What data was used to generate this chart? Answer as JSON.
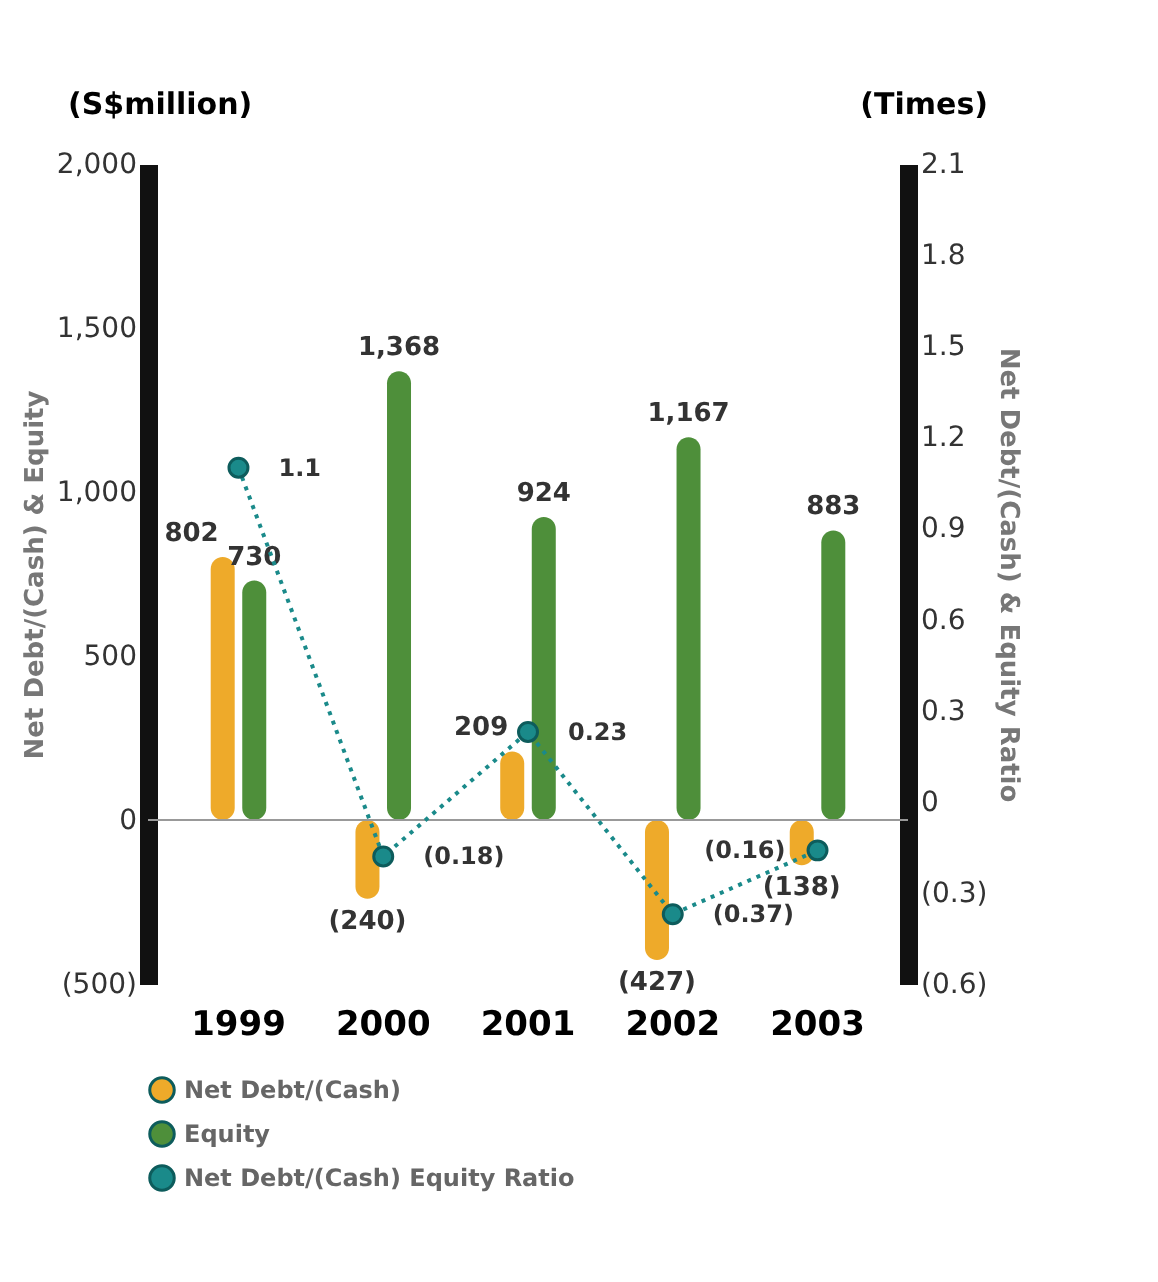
{
  "chart_data": {
    "type": "bar",
    "categories": [
      "1999",
      "2000",
      "2001",
      "2002",
      "2003"
    ],
    "ylabel": "Net Debt/(Cash) & Equity",
    "y2label": "Net Debt/(Cash) & Equity Ratio",
    "annotations": [
      "(S$million)",
      "(Times)"
    ],
    "series": [
      {
        "name": "Net Debt/(Cash)",
        "color": "#eeaa2a",
        "values": [
          802,
          -240,
          209,
          -427,
          -138
        ],
        "value_labels": [
          "802",
          "(240)",
          "209",
          "(427)",
          "(138)"
        ]
      },
      {
        "name": "Equity",
        "color": "#4e8f3a",
        "values": [
          730,
          1368,
          924,
          1167,
          883
        ],
        "value_labels": [
          "730",
          "1,368",
          "924",
          "1,167",
          "883"
        ]
      },
      {
        "name": "Net Debt/(Cash) Equity Ratio",
        "type": "line",
        "axis": "y2",
        "color": "#1a8a8a",
        "line_style": "dotted",
        "marker": "circle",
        "values": [
          1.1,
          -0.18,
          0.23,
          -0.37,
          -0.16
        ],
        "value_labels": [
          "1.1",
          "(0.18)",
          "0.23",
          "(0.37)",
          "(0.16)"
        ]
      }
    ],
    "ylim": [
      -500,
      2000
    ],
    "yticks": [
      {
        "value": -500,
        "label": "(500)"
      },
      0,
      {
        "value": 500,
        "label": "500"
      },
      {
        "value": 1000,
        "label": "1,000"
      },
      {
        "value": 1500,
        "label": "1,500"
      },
      {
        "value": 2000,
        "label": "2,000"
      }
    ],
    "y2lim": [
      -0.6,
      2.1
    ],
    "y2ticks": [
      {
        "value": -0.6,
        "label": "(0.6)"
      },
      {
        "value": -0.3,
        "label": "(0.3)"
      },
      0,
      0.3,
      0.6,
      0.9,
      1.2,
      1.5,
      1.8,
      2.1
    ],
    "ref_lines": [
      {
        "axis": "y",
        "value": 0,
        "color": "#999999"
      }
    ],
    "grid": false,
    "legend": "bottom"
  }
}
